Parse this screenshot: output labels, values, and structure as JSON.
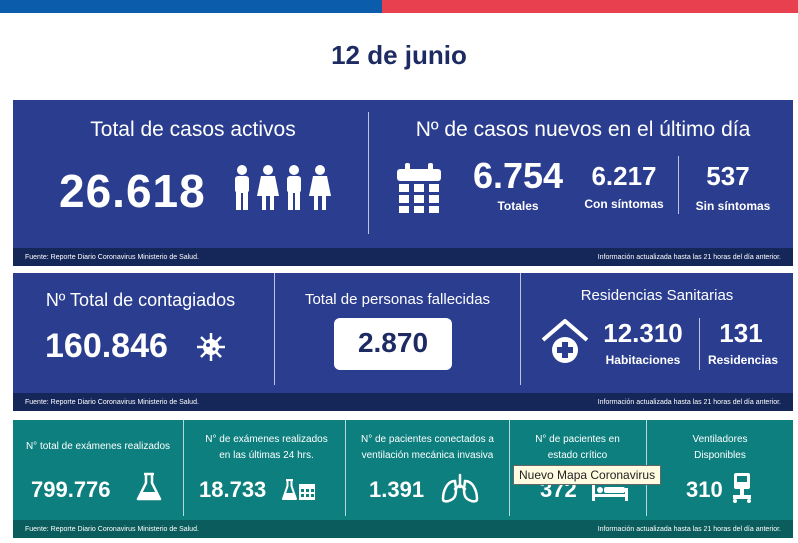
{
  "header": {
    "date": "12 de junio"
  },
  "panel_1": {
    "active_title": "Total de casos activos",
    "active_value": "26.618",
    "new_title": "Nº de casos nuevos en el último día",
    "new_total_value": "6.754",
    "new_total_label": "Totales",
    "with_symptoms_value": "6.217",
    "with_symptoms_label": "Con síntomas",
    "without_symptoms_value": "537",
    "without_symptoms_label": "Sin síntomas",
    "source_text": "Fuente: Reporte Diario Coronavirus Ministerio de Salud.",
    "update_text": "Información actualizada hasta las 21 horas  del día anterior."
  },
  "panel_2": {
    "contagiados_title": "Nº Total de contagiados",
    "contagiados_value": "160.846",
    "fallecidos_title": "Total de personas fallecidas",
    "fallecidos_value": "2.870",
    "residencias_title": "Residencias Sanitarias",
    "habitaciones_value": "12.310",
    "habitaciones_label": "Habitaciones",
    "residencias_value": "131",
    "residencias_label": "Residencias",
    "source_text": "Fuente: Reporte Diario Coronavirus Ministerio de Salud.",
    "update_text": "Información actualizada hasta las 21 horas  del día anterior."
  },
  "panel_3": {
    "examenes_title": "N° total de exámenes realizados",
    "examenes_value": "799.776",
    "examenes24_title_l1": "N° de exámenes realizados",
    "examenes24_title_l2": "en las últimas 24 hrs.",
    "examenes24_value": "18.733",
    "ventilacion_title_l1": "N° de pacientes conectados a",
    "ventilacion_title_l2": "ventilación mecánica invasiva",
    "ventilacion_value": "1.391",
    "critico_title_l1": "N° de pacientes  en",
    "critico_title_l2": "estado crítico",
    "critico_value": "372",
    "ventiladores_title_l1": "Ventiladores",
    "ventiladores_title_l2": "Disponibles",
    "ventiladores_value": "310",
    "source_text": "Fuente: Reporte Diario Coronavirus Ministerio de Salud.",
    "update_text": "Información actualizada hasta las 21 horas  del día anterior."
  },
  "tooltip": {
    "text": "Nuevo Mapa Coronavirus"
  },
  "colors": {
    "navy_panel": "#2b3d8f",
    "teal_panel": "#0d7f7e",
    "top_blue": "#0b5cab",
    "top_red": "#e8404f",
    "date_text": "#1d2b62"
  },
  "icons": [
    "people-icon",
    "calendar-icon",
    "virus-icon",
    "house-cross-icon",
    "flask-icon",
    "flask-calendar-icon",
    "lungs-icon",
    "bed-icon",
    "ventilator-icon"
  ]
}
